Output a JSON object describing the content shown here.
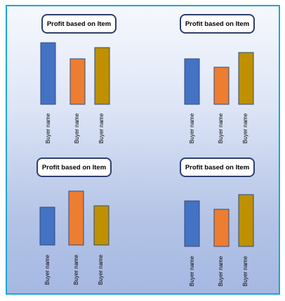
{
  "chart_data": [
    {
      "type": "bar",
      "title": "Profit based on Item",
      "categories": [
        "Buyer name",
        "Buyer name",
        "Buyer name"
      ],
      "values": [
        88,
        65,
        81
      ],
      "colors": [
        "#4472c4",
        "#ed7d31",
        "#bf9000"
      ],
      "ylim": [
        0,
        100
      ],
      "grid": false,
      "legend": "none"
    },
    {
      "type": "bar",
      "title": "Profit based on Item",
      "categories": [
        "Buyer name",
        "Buyer name",
        "Buyer name"
      ],
      "values": [
        65,
        53,
        74
      ],
      "colors": [
        "#4472c4",
        "#ed7d31",
        "#bf9000"
      ],
      "ylim": [
        0,
        100
      ],
      "grid": false,
      "legend": "none"
    },
    {
      "type": "bar",
      "title": "Profit based on Item",
      "categories": [
        "Buyer name",
        "Buyer name",
        "Buyer name"
      ],
      "values": [
        54,
        77,
        56
      ],
      "colors": [
        "#4472c4",
        "#ed7d31",
        "#bf9000"
      ],
      "ylim": [
        0,
        100
      ],
      "grid": false,
      "legend": "none"
    },
    {
      "type": "bar",
      "title": "Profit based on Item",
      "categories": [
        "Buyer name",
        "Buyer name",
        "Buyer name"
      ],
      "values": [
        65,
        53,
        74
      ],
      "colors": [
        "#4472c4",
        "#ed7d31",
        "#bf9000"
      ],
      "ylim": [
        0,
        100
      ],
      "grid": false,
      "legend": "none"
    }
  ]
}
